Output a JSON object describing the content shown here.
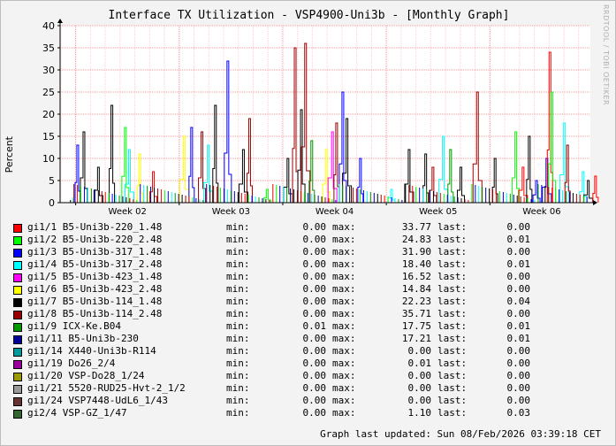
{
  "chart_data": {
    "type": "line",
    "title": "Interface TX Utilization - VSP4900-Uni3b - [Monthly Graph]",
    "ylabel": "Percent",
    "ylim": [
      0,
      40
    ],
    "y_ticks": [
      0,
      5,
      10,
      15,
      20,
      25,
      30,
      35,
      40
    ],
    "x_ticks": [
      "Week 02",
      "Week 03",
      "Week 04",
      "Week 05",
      "Week 06"
    ],
    "grid": true,
    "series": [
      {
        "name": "gi1/1 B5-Uni3b-220_1.48",
        "color": "#ff0000",
        "min": "0.00",
        "max": "33.77",
        "last": "0.00"
      },
      {
        "name": "gi1/2 B5-Uni3b-220_2.48",
        "color": "#00ff00",
        "min": "0.00",
        "max": "24.83",
        "last": "0.01"
      },
      {
        "name": "gi1/3 B5-Uni3b-317_1.48",
        "color": "#0000ff",
        "min": "0.00",
        "max": "31.90",
        "last": "0.00"
      },
      {
        "name": "gi1/4 B5-Uni3b-317_2.48",
        "color": "#00ffff",
        "min": "0.00",
        "max": "18.40",
        "last": "0.01"
      },
      {
        "name": "gi1/5 B5-Uni3b-423_1.48",
        "color": "#ff00ff",
        "min": "0.00",
        "max": "16.52",
        "last": "0.00"
      },
      {
        "name": "gi1/6 B5-Uni3b-423_2.48",
        "color": "#ffff00",
        "min": "0.00",
        "max": "14.84",
        "last": "0.00"
      },
      {
        "name": "gi1/7 B5-Uni3b-114_1.48",
        "color": "#000000",
        "min": "0.00",
        "max": "22.23",
        "last": "0.04"
      },
      {
        "name": "gi1/8 B5-Uni3b-114_2.48",
        "color": "#990000",
        "min": "0.00",
        "max": "35.71",
        "last": "0.00"
      },
      {
        "name": "gi1/9 ICX-Ke.B04",
        "color": "#009900",
        "min": "0.01",
        "max": "17.75",
        "last": "0.01"
      },
      {
        "name": "gi1/11 B5-Uni3b-230",
        "color": "#000099",
        "min": "0.00",
        "max": "17.21",
        "last": "0.01"
      },
      {
        "name": "gi1/14 X440-Uni3b-R114",
        "color": "#009999",
        "min": "0.00",
        "max": "0.00",
        "last": "0.00"
      },
      {
        "name": "gi1/19 Do26_2/4",
        "color": "#990099",
        "min": "0.00",
        "max": "0.01",
        "last": "0.00"
      },
      {
        "name": "gi1/20 VSP-Do28_1/24",
        "color": "#999900",
        "min": "0.00",
        "max": "0.00",
        "last": "0.00"
      },
      {
        "name": "gi1/21 5520-RUD25-Hvt-2_1/2",
        "color": "#999999",
        "min": "0.00",
        "max": "0.00",
        "last": "0.00"
      },
      {
        "name": "gi1/24 VSP7448-UdL6_1/43",
        "color": "#663333",
        "min": "0.00",
        "max": "0.00",
        "last": "0.00"
      },
      {
        "name": "gi2/4 VSP-GZ_1/47",
        "color": "#336633",
        "min": "0.00",
        "max": "1.10",
        "last": "0.03"
      }
    ],
    "peaks": [
      {
        "week": 1.52,
        "value": 13,
        "series": 2
      },
      {
        "week": 1.58,
        "value": 16,
        "series": 6
      },
      {
        "week": 1.72,
        "value": 8,
        "series": 6
      },
      {
        "week": 1.85,
        "value": 22,
        "series": 6
      },
      {
        "week": 1.98,
        "value": 17,
        "series": 1
      },
      {
        "week": 2.02,
        "value": 12,
        "series": 3
      },
      {
        "week": 2.12,
        "value": 11,
        "series": 5
      },
      {
        "week": 2.25,
        "value": 7,
        "series": 0
      },
      {
        "week": 2.55,
        "value": 15,
        "series": 5
      },
      {
        "week": 2.62,
        "value": 17,
        "series": 2
      },
      {
        "week": 2.72,
        "value": 16,
        "series": 7
      },
      {
        "week": 2.78,
        "value": 13,
        "series": 3
      },
      {
        "week": 2.85,
        "value": 22,
        "series": 6
      },
      {
        "week": 2.97,
        "value": 32,
        "series": 2
      },
      {
        "week": 3.12,
        "value": 12,
        "series": 6
      },
      {
        "week": 3.18,
        "value": 19,
        "series": 7
      },
      {
        "week": 3.35,
        "value": 3,
        "series": 1
      },
      {
        "week": 3.55,
        "value": 10,
        "series": 6
      },
      {
        "week": 3.62,
        "value": 35,
        "series": 7
      },
      {
        "week": 3.68,
        "value": 21,
        "series": 6
      },
      {
        "week": 3.72,
        "value": 36,
        "series": 7
      },
      {
        "week": 3.78,
        "value": 14,
        "series": 8
      },
      {
        "week": 3.92,
        "value": 12,
        "series": 5
      },
      {
        "week": 3.98,
        "value": 16,
        "series": 4
      },
      {
        "week": 4.02,
        "value": 18,
        "series": 7
      },
      {
        "week": 4.08,
        "value": 25,
        "series": 2
      },
      {
        "week": 4.12,
        "value": 19,
        "series": 6
      },
      {
        "week": 4.25,
        "value": 10,
        "series": 2
      },
      {
        "week": 4.55,
        "value": 3,
        "series": 3
      },
      {
        "week": 4.72,
        "value": 12,
        "series": 6
      },
      {
        "week": 4.88,
        "value": 11,
        "series": 6
      },
      {
        "week": 4.95,
        "value": 8,
        "series": 7
      },
      {
        "week": 5.05,
        "value": 15,
        "series": 3
      },
      {
        "week": 5.12,
        "value": 12,
        "series": 8
      },
      {
        "week": 5.22,
        "value": 8,
        "series": 6
      },
      {
        "week": 5.38,
        "value": 25,
        "series": 7
      },
      {
        "week": 5.55,
        "value": 10,
        "series": 6
      },
      {
        "week": 5.75,
        "value": 16,
        "series": 1
      },
      {
        "week": 5.82,
        "value": 8,
        "series": 0
      },
      {
        "week": 5.88,
        "value": 15,
        "series": 6
      },
      {
        "week": 5.95,
        "value": 5,
        "series": 2
      },
      {
        "week": 6.05,
        "value": 10,
        "series": 2
      },
      {
        "week": 6.08,
        "value": 34,
        "series": 0
      },
      {
        "week": 6.1,
        "value": 25,
        "series": 1
      },
      {
        "week": 6.22,
        "value": 18,
        "series": 3
      },
      {
        "week": 6.25,
        "value": 13,
        "series": 7
      },
      {
        "week": 6.4,
        "value": 7,
        "series": 3
      },
      {
        "week": 6.45,
        "value": 5,
        "series": 6
      },
      {
        "week": 6.52,
        "value": 6,
        "series": 0
      }
    ]
  },
  "legend_labels": {
    "min": "min:",
    "max": "max:",
    "last": "last:"
  },
  "watermark": "RRDTOOL / TOBI OETIKER",
  "footer": {
    "updated": "Graph last updated: Sun 08/Feb/2026 03:39:18 CET"
  }
}
